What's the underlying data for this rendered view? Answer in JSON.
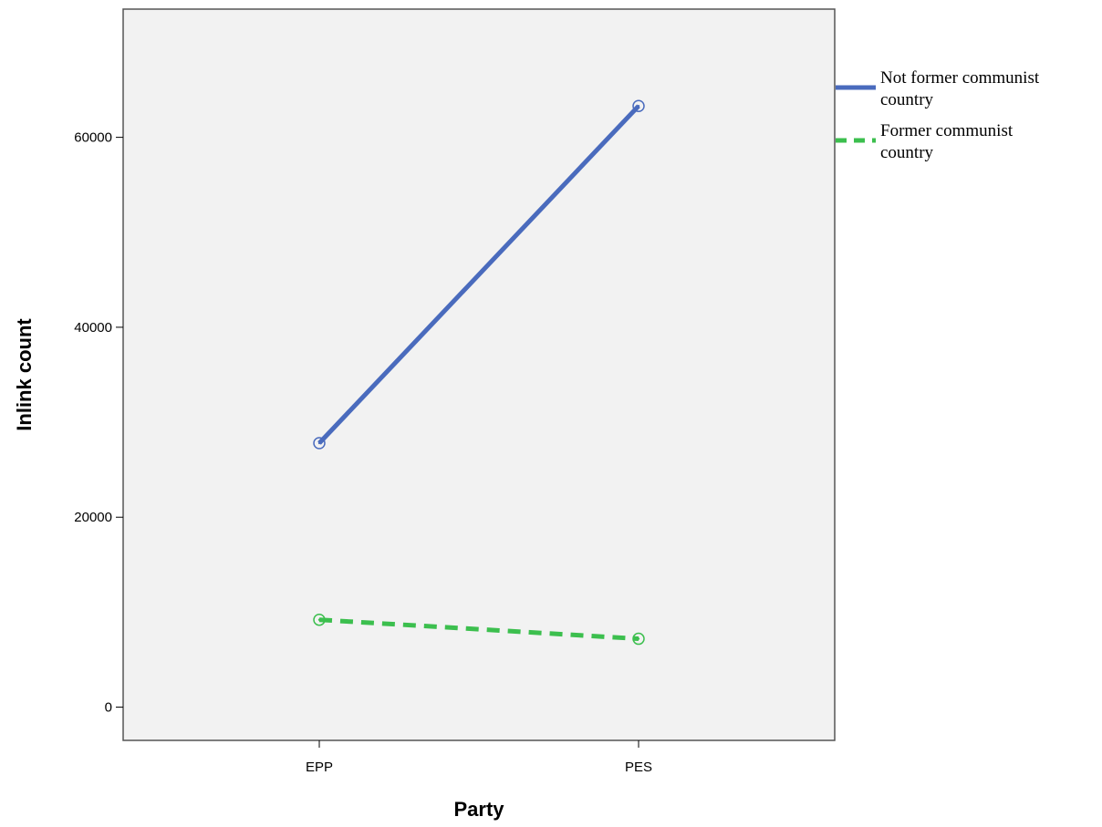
{
  "chart_data": {
    "type": "line",
    "title": "",
    "xlabel": "Party",
    "ylabel": "Inlink count",
    "categories": [
      "EPP",
      "PES"
    ],
    "ylim": [
      -3500,
      73500
    ],
    "yticks": [
      0,
      20000,
      40000,
      60000
    ],
    "ytick_labels": [
      "0",
      "20000",
      "40000",
      "60000"
    ],
    "grid": false,
    "legend_position": "right",
    "series": [
      {
        "name": "Not former communist country",
        "name_lines": [
          "Not former communist",
          "country"
        ],
        "values": [
          27800,
          63300
        ],
        "color": "#4a6bbd",
        "dash": "solid"
      },
      {
        "name": "Former communist country",
        "name_lines": [
          "Former communist",
          "country"
        ],
        "values": [
          9200,
          7200
        ],
        "color": "#3cbf4e",
        "dash": "dashed"
      }
    ]
  },
  "colors": {
    "plot_background": "#f2f2f2",
    "frame": "#555555"
  }
}
